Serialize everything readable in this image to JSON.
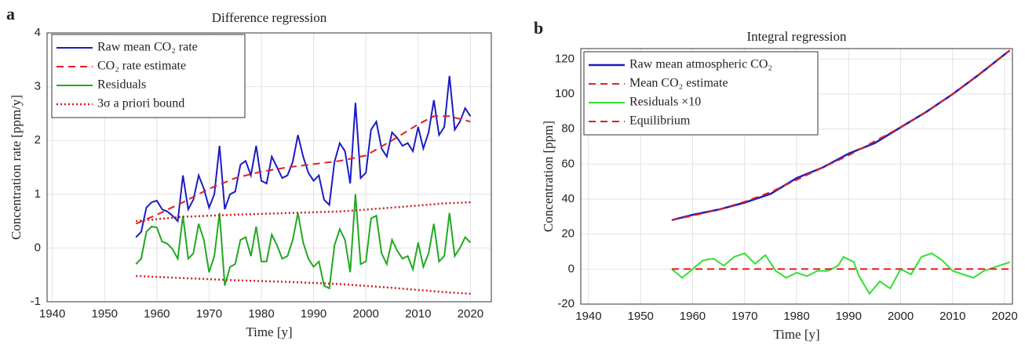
{
  "chart_data": [
    {
      "type": "line",
      "panel_label": "a",
      "title": "Difference regression",
      "xlabel": "Time [y]",
      "ylabel": "Concentration rate [ppm/y]",
      "xlim": [
        1939,
        2024
      ],
      "ylim": [
        -1,
        4
      ],
      "xticks": [
        1940,
        1950,
        1960,
        1970,
        1980,
        1990,
        2000,
        2010,
        2020
      ],
      "yticks": [
        -1,
        0,
        1,
        2,
        3,
        4
      ],
      "grid": true,
      "series": [
        {
          "name": "Raw mean CO₂ rate",
          "color": "#1c1cc4",
          "style": "solid",
          "width": 2,
          "x": [
            1956,
            1957,
            1958,
            1959,
            1960,
            1961,
            1962,
            1963,
            1964,
            1965,
            1966,
            1967,
            1968,
            1969,
            1970,
            1971,
            1972,
            1973,
            1974,
            1975,
            1976,
            1977,
            1978,
            1979,
            1980,
            1981,
            1982,
            1983,
            1984,
            1985,
            1986,
            1987,
            1988,
            1989,
            1990,
            1991,
            1992,
            1993,
            1994,
            1995,
            1996,
            1997,
            1998,
            1999,
            2000,
            2001,
            2002,
            2003,
            2004,
            2005,
            2006,
            2007,
            2008,
            2009,
            2010,
            2011,
            2012,
            2013,
            2014,
            2015,
            2016,
            2017,
            2018,
            2019,
            2020
          ],
          "values": [
            0.2,
            0.3,
            0.75,
            0.85,
            0.88,
            0.72,
            0.68,
            0.6,
            0.5,
            1.35,
            0.72,
            0.9,
            1.35,
            1.1,
            0.75,
            1.0,
            1.9,
            0.72,
            1.0,
            1.05,
            1.55,
            1.62,
            1.35,
            1.9,
            1.25,
            1.2,
            1.7,
            1.5,
            1.3,
            1.35,
            1.6,
            2.1,
            1.7,
            1.4,
            1.25,
            1.35,
            0.9,
            0.8,
            1.6,
            1.95,
            1.8,
            1.2,
            2.7,
            1.3,
            1.4,
            2.2,
            2.35,
            1.85,
            1.7,
            2.15,
            2.05,
            1.9,
            1.95,
            1.8,
            2.25,
            1.85,
            2.15,
            2.75,
            2.1,
            2.25,
            3.2,
            2.2,
            2.35,
            2.6,
            2.45
          ]
        },
        {
          "name": "CO₂ rate estimate",
          "color": "#e02020",
          "style": "dashed",
          "width": 2,
          "x": [
            1956,
            1960,
            1965,
            1970,
            1975,
            1980,
            1985,
            1990,
            1995,
            2000,
            2005,
            2010,
            2013,
            2016,
            2020
          ],
          "values": [
            0.45,
            0.62,
            0.85,
            1.1,
            1.3,
            1.42,
            1.5,
            1.56,
            1.62,
            1.72,
            2.0,
            2.3,
            2.45,
            2.45,
            2.35
          ]
        },
        {
          "name": "Residuals",
          "color": "#22a822",
          "style": "solid",
          "width": 2,
          "x": [
            1956,
            1957,
            1958,
            1959,
            1960,
            1961,
            1962,
            1963,
            1964,
            1965,
            1966,
            1967,
            1968,
            1969,
            1970,
            1971,
            1972,
            1973,
            1974,
            1975,
            1976,
            1977,
            1978,
            1979,
            1980,
            1981,
            1982,
            1983,
            1984,
            1985,
            1986,
            1987,
            1988,
            1989,
            1990,
            1991,
            1992,
            1993,
            1994,
            1995,
            1996,
            1997,
            1998,
            1999,
            2000,
            2001,
            2002,
            2003,
            2004,
            2005,
            2006,
            2007,
            2008,
            2009,
            2010,
            2011,
            2012,
            2013,
            2014,
            2015,
            2016,
            2017,
            2018,
            2019,
            2020
          ],
          "values": [
            -0.3,
            -0.2,
            0.3,
            0.4,
            0.38,
            0.12,
            0.08,
            -0.02,
            -0.2,
            0.6,
            -0.2,
            -0.1,
            0.45,
            0.15,
            -0.45,
            -0.15,
            0.65,
            -0.7,
            -0.35,
            -0.3,
            0.15,
            0.2,
            -0.15,
            0.4,
            -0.25,
            -0.25,
            0.25,
            0.05,
            -0.2,
            -0.15,
            0.15,
            0.65,
            0.1,
            -0.2,
            -0.35,
            -0.25,
            -0.7,
            -0.75,
            0.05,
            0.35,
            0.15,
            -0.45,
            1.0,
            -0.3,
            -0.25,
            0.55,
            0.6,
            -0.1,
            -0.3,
            0.15,
            -0.05,
            -0.2,
            -0.15,
            -0.4,
            0.1,
            -0.35,
            -0.1,
            0.45,
            -0.25,
            -0.15,
            0.65,
            -0.15,
            0.0,
            0.2,
            0.1
          ]
        },
        {
          "name": "3σ a priori bound",
          "color": "#d42020",
          "style": "dotted",
          "width": 2.5,
          "x": [
            1956,
            1965,
            1975,
            1985,
            1995,
            2005,
            2015,
            2020
          ],
          "values": [
            0.5,
            0.58,
            0.62,
            0.65,
            0.68,
            0.75,
            0.83,
            0.85
          ],
          "lower": [
            -0.52,
            -0.56,
            -0.6,
            -0.63,
            -0.67,
            -0.74,
            -0.82,
            -0.85
          ]
        }
      ]
    },
    {
      "type": "line",
      "panel_label": "b",
      "title": "Integral regression",
      "xlabel": "Time [y]",
      "ylabel": "Concentration [ppm]",
      "xlim": [
        1938.5,
        2021.5
      ],
      "ylim": [
        -20,
        126
      ],
      "xticks": [
        1940,
        1950,
        1960,
        1970,
        1980,
        1990,
        2000,
        2010,
        2020
      ],
      "yticks": [
        -20,
        0,
        20,
        40,
        60,
        80,
        100,
        120
      ],
      "grid": true,
      "series": [
        {
          "name": "Raw mean atmospheric CO₂",
          "color": "#1c1cc4",
          "style": "solid",
          "width": 2.5,
          "x": [
            1956,
            1960,
            1965,
            1970,
            1975,
            1980,
            1985,
            1990,
            1995,
            2000,
            2005,
            2010,
            2015,
            2021
          ],
          "values": [
            28,
            31,
            34,
            38,
            43,
            52,
            58,
            66,
            72,
            81,
            90,
            100,
            111,
            125
          ]
        },
        {
          "name": "Mean CO₂ estimate",
          "color": "#e02020",
          "style": "dashed",
          "width": 2,
          "x": [
            1956,
            1960,
            1965,
            1970,
            1975,
            1980,
            1985,
            1990,
            1995,
            2000,
            2005,
            2010,
            2015,
            2021
          ],
          "values": [
            28,
            30.5,
            34,
            38.5,
            44,
            51,
            58,
            65,
            73,
            81,
            90,
            100,
            111,
            125
          ]
        },
        {
          "name": "Residuals ×10",
          "color": "#33e033",
          "style": "solid",
          "width": 2,
          "x": [
            1956,
            1958,
            1960,
            1962,
            1964,
            1966,
            1968,
            1970,
            1972,
            1974,
            1976,
            1978,
            1980,
            1982,
            1984,
            1986,
            1988,
            1989,
            1991,
            1992,
            1994,
            1996,
            1998,
            2000,
            2002,
            2004,
            2006,
            2008,
            2010,
            2012,
            2014,
            2016,
            2018,
            2021
          ],
          "values": [
            0,
            -5,
            0,
            5,
            6,
            2,
            7,
            9,
            3,
            8,
            -1,
            -5,
            -2,
            -4,
            -1,
            -1,
            2,
            7,
            4,
            -4,
            -14,
            -7,
            -11,
            0,
            -3,
            7,
            9,
            5,
            -1,
            -3,
            -5,
            -1,
            1,
            4
          ]
        },
        {
          "name": "Equilibrium",
          "color": "#e02020",
          "style": "dashed",
          "width": 2,
          "x": [
            1956,
            2021
          ],
          "values": [
            0,
            0
          ]
        }
      ]
    }
  ]
}
